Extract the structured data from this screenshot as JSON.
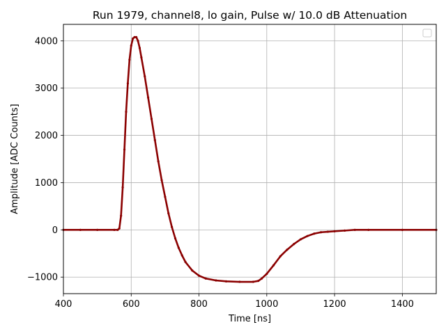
{
  "chart_data": {
    "type": "scatter",
    "title": "Run 1979, channel8, lo gain, Pulse w/ 10.0 dB Attenuation",
    "xlabel": "Time [ns]",
    "ylabel": "Amplitude [ADC Counts]",
    "xlim": [
      400,
      1500
    ],
    "ylim": [
      -1350,
      4350
    ],
    "x_ticks": [
      400,
      600,
      800,
      1000,
      1200,
      1400
    ],
    "y_ticks": [
      -1000,
      0,
      1000,
      2000,
      3000,
      4000
    ],
    "x_tick_labels": [
      "400",
      "600",
      "800",
      "1000",
      "1200",
      "1400"
    ],
    "y_tick_labels": [
      "−1000",
      "0",
      "1000",
      "2000",
      "3000",
      "4000"
    ],
    "grid": true,
    "legend": "top-right, empty",
    "color": "#8b0000",
    "series": [
      {
        "x": [
          400,
          450,
          500,
          550,
          560,
          565,
          570,
          575,
          580,
          585,
          590,
          595,
          600,
          605,
          610,
          615,
          620,
          625,
          630,
          640,
          650,
          660,
          670,
          680,
          690,
          700,
          710,
          720,
          730,
          740,
          750,
          760,
          780,
          800,
          820,
          850,
          880,
          920,
          960,
          975,
          985,
          1000,
          1020,
          1040,
          1060,
          1080,
          1100,
          1120,
          1140,
          1160,
          1180,
          1200,
          1230,
          1260,
          1300,
          1400,
          1500
        ],
        "y": [
          0,
          0,
          0,
          0,
          0,
          30,
          300,
          900,
          1700,
          2500,
          3100,
          3600,
          3900,
          4050,
          4080,
          4080,
          4000,
          3850,
          3650,
          3250,
          2800,
          2350,
          1900,
          1450,
          1050,
          700,
          350,
          60,
          -180,
          -380,
          -540,
          -680,
          -860,
          -970,
          -1030,
          -1070,
          -1090,
          -1100,
          -1100,
          -1080,
          -1030,
          -930,
          -750,
          -560,
          -420,
          -300,
          -200,
          -130,
          -80,
          -50,
          -40,
          -30,
          -15,
          0,
          0,
          0,
          0
        ]
      }
    ]
  }
}
